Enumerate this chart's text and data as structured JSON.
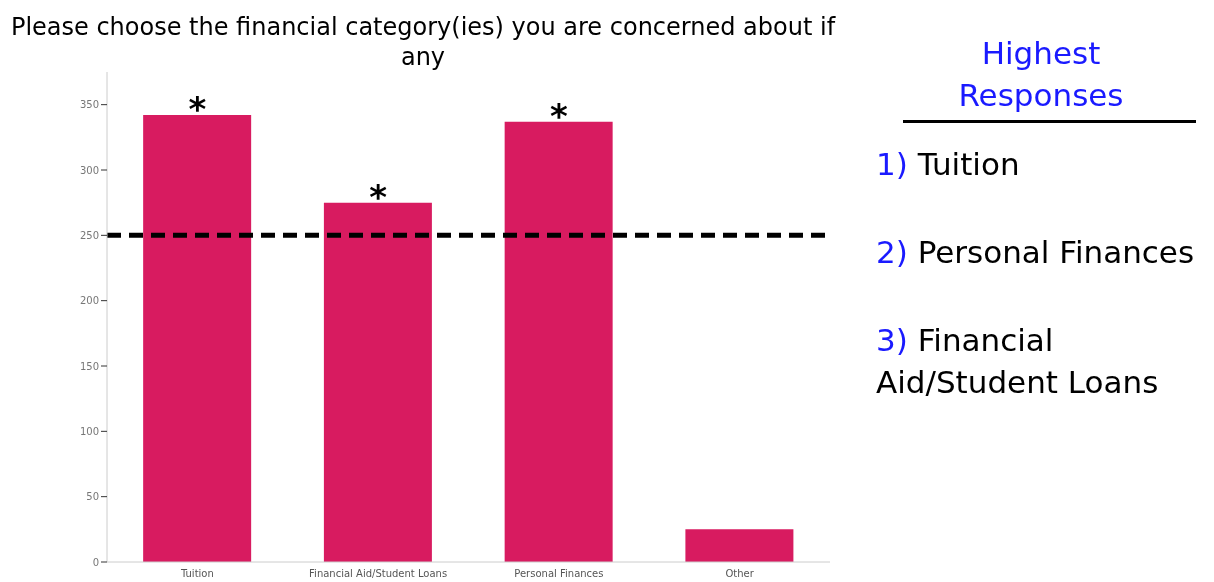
{
  "chart_data": {
    "type": "bar",
    "title": "Please choose the financial category(ies) you are concerned about if any",
    "categories": [
      "Tuition",
      "Financial Aid/Student Loans",
      "Personal Finances",
      "Other"
    ],
    "values": [
      342,
      275,
      337,
      25
    ],
    "color": "#d81b60",
    "ylim": [
      0,
      375
    ],
    "yticks": [
      0,
      50,
      100,
      150,
      200,
      250,
      300,
      350
    ],
    "grid": false,
    "ref_lines": [
      {
        "axis": "y",
        "value": 250,
        "color": "#000000",
        "line_style": "dashed"
      }
    ],
    "annotations": [
      {
        "text": "*",
        "x": "Tuition",
        "y": 342
      },
      {
        "text": "*",
        "x": "Financial Aid/Student Loans",
        "y": 275
      },
      {
        "text": "*",
        "x": "Personal Finances",
        "y": 337
      },
      "Highest Responses",
      "1) Tuition",
      "2) Personal Finances",
      "3) Financial Aid/Student Loans"
    ]
  }
}
